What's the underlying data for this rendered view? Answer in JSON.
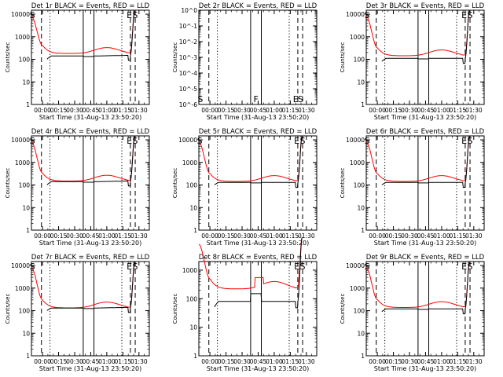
{
  "chart_data": [
    {
      "type": "line",
      "title": "Det 1r BLACK = Events, RED = LLD",
      "empty": false,
      "black_level": 140,
      "red_peak": 330,
      "black_ends": [
        100,
        150
      ],
      "black_hump": 0,
      "red_spike": 0,
      "x_ticks": [
        "00:00",
        "00:15",
        "00:30",
        "00:45",
        "01:00",
        "01:15",
        "01:30"
      ],
      "y_ticks": [
        "1",
        "10",
        "100",
        "1000",
        "10000"
      ],
      "xlabel": "Start Time (31-Aug-13 23:50:20)",
      "ylabel": "Counts/sec",
      "xlim_min": [
        -10.33,
        99.67
      ],
      "ylim": [
        1,
        15000
      ],
      "vlines": [
        {
          "t": -1,
          "style": "dash"
        },
        {
          "t": 7,
          "style": "dot"
        },
        {
          "t": 38,
          "style": "solid"
        },
        {
          "t": 48,
          "style": "solid"
        },
        {
          "t": 74,
          "style": "dot"
        },
        {
          "t": 82,
          "style": "dash"
        },
        {
          "t": 86.5,
          "style": "dash"
        }
      ],
      "markers": [
        {
          "label": "S",
          "t": -9.5
        },
        {
          "label": "E",
          "t": 81
        },
        {
          "label": "S",
          "t": 86.5
        }
      ]
    },
    {
      "type": "line",
      "title": "Det 2r BLACK = Events, RED = LLD",
      "empty": true,
      "black_level": 0,
      "red_peak": 0,
      "black_ends": [
        0,
        0
      ],
      "black_hump": 0,
      "red_spike": 0,
      "x_ticks": [
        "00:00",
        "00:15",
        "00:30",
        "00:45",
        "01:00",
        "01:15",
        "01:30"
      ],
      "y_ticks": [
        "10^0",
        "10^-1",
        "10^-2",
        "10^-3",
        "10^-4",
        "10^-5",
        "10^-6"
      ],
      "xlabel": "Start Time (31-Aug-13 23:50:20)",
      "ylabel": "Counts/sec",
      "xlim_min": [
        -10.33,
        99.67
      ],
      "ylim": [
        1e-06,
        1
      ],
      "vlines": [
        {
          "t": -1,
          "style": "dash"
        },
        {
          "t": 7,
          "style": "dot"
        },
        {
          "t": 38,
          "style": "solid"
        },
        {
          "t": 48,
          "style": "solid"
        },
        {
          "t": 74,
          "style": "dot"
        },
        {
          "t": 82,
          "style": "dash"
        },
        {
          "t": 86.5,
          "style": "dash"
        }
      ],
      "markers": [
        {
          "label": "S",
          "t": -9
        },
        {
          "label": "F",
          "t": 43
        },
        {
          "label": "E",
          "t": 80
        },
        {
          "label": "S",
          "t": 84.5
        }
      ]
    },
    {
      "type": "line",
      "title": "Det 3r BLACK = Events, RED = LLD",
      "empty": false,
      "black_level": 110,
      "red_peak": 260,
      "black_ends": [
        80,
        110
      ],
      "black_hump": 0,
      "red_spike": 0,
      "x_ticks": [
        "00:00",
        "00:15",
        "00:30",
        "00:45",
        "01:00",
        "01:15",
        "01:30"
      ],
      "y_ticks": [
        "1",
        "10",
        "100",
        "1000",
        "10000"
      ],
      "xlabel": "Start Time (31-Aug-13 23:50:20)",
      "ylabel": "Counts/sec",
      "xlim_min": [
        -10.33,
        99.67
      ],
      "ylim": [
        1,
        15000
      ],
      "vlines": [
        {
          "t": -1,
          "style": "dash"
        },
        {
          "t": 7,
          "style": "dot"
        },
        {
          "t": 38,
          "style": "solid"
        },
        {
          "t": 48,
          "style": "solid"
        },
        {
          "t": 74,
          "style": "dot"
        },
        {
          "t": 82,
          "style": "dash"
        },
        {
          "t": 86.5,
          "style": "dash"
        }
      ],
      "markers": [
        {
          "label": "S",
          "t": -9.5
        },
        {
          "label": "E",
          "t": 81
        },
        {
          "label": "S",
          "t": 86.5
        }
      ]
    },
    {
      "type": "line",
      "title": "Det 4r BLACK = Events, RED = LLD",
      "empty": false,
      "black_level": 140,
      "red_peak": 270,
      "black_ends": [
        100,
        150
      ],
      "black_hump": 0,
      "red_spike": 0,
      "x_ticks": [
        "00:00",
        "00:15",
        "00:30",
        "00:45",
        "01:00",
        "01:15",
        "01:30"
      ],
      "y_ticks": [
        "1",
        "10",
        "100",
        "1000",
        "10000"
      ],
      "xlabel": "Start Time (31-Aug-13 23:50:20)",
      "ylabel": "Counts/sec",
      "xlim_min": [
        -10.33,
        99.67
      ],
      "ylim": [
        1,
        15000
      ],
      "vlines": [
        {
          "t": -1,
          "style": "dash"
        },
        {
          "t": 7,
          "style": "dot"
        },
        {
          "t": 38,
          "style": "solid"
        },
        {
          "t": 48,
          "style": "solid"
        },
        {
          "t": 74,
          "style": "dot"
        },
        {
          "t": 82,
          "style": "dash"
        },
        {
          "t": 86.5,
          "style": "dash"
        }
      ],
      "markers": [
        {
          "label": "S",
          "t": -9.5
        },
        {
          "label": "E",
          "t": 81
        },
        {
          "label": "S",
          "t": 86.5
        }
      ]
    },
    {
      "type": "line",
      "title": "Det 5r BLACK = Events, RED = LLD",
      "empty": false,
      "black_level": 130,
      "red_peak": 260,
      "black_ends": [
        100,
        130
      ],
      "black_hump": 0,
      "red_spike": 0,
      "x_ticks": [
        "00:00",
        "00:15",
        "00:30",
        "00:45",
        "01:00",
        "01:15",
        "01:30"
      ],
      "y_ticks": [
        "1",
        "10",
        "100",
        "1000",
        "10000"
      ],
      "xlabel": "Start Time (31-Aug-13 23:50:20)",
      "ylabel": "Counts/sec",
      "xlim_min": [
        -10.33,
        99.67
      ],
      "ylim": [
        1,
        15000
      ],
      "vlines": [
        {
          "t": -1,
          "style": "dash"
        },
        {
          "t": 7,
          "style": "dot"
        },
        {
          "t": 38,
          "style": "solid"
        },
        {
          "t": 48,
          "style": "solid"
        },
        {
          "t": 74,
          "style": "dot"
        },
        {
          "t": 82,
          "style": "dash"
        },
        {
          "t": 86.5,
          "style": "dash"
        }
      ],
      "markers": [
        {
          "label": "S",
          "t": -9.5
        },
        {
          "label": "E",
          "t": 81
        },
        {
          "label": "S",
          "t": 86.5
        }
      ]
    },
    {
      "type": "line",
      "title": "Det 6r BLACK = Events, RED = LLD",
      "empty": false,
      "black_level": 130,
      "red_peak": 260,
      "black_ends": [
        100,
        130
      ],
      "black_hump": 0,
      "red_spike": 0,
      "x_ticks": [
        "00:00",
        "00:15",
        "00:30",
        "00:45",
        "01:00",
        "01:15",
        "01:30"
      ],
      "y_ticks": [
        "1",
        "10",
        "100",
        "1000",
        "10000"
      ],
      "xlabel": "Start Time (31-Aug-13 23:50:20)",
      "ylabel": "Counts/sec",
      "xlim_min": [
        -10.33,
        99.67
      ],
      "ylim": [
        1,
        15000
      ],
      "vlines": [
        {
          "t": -1,
          "style": "dash"
        },
        {
          "t": 7,
          "style": "dot"
        },
        {
          "t": 38,
          "style": "solid"
        },
        {
          "t": 48,
          "style": "solid"
        },
        {
          "t": 74,
          "style": "dot"
        },
        {
          "t": 82,
          "style": "dash"
        },
        {
          "t": 86.5,
          "style": "dash"
        }
      ],
      "markers": [
        {
          "label": "S",
          "t": -9.5
        },
        {
          "label": "E",
          "t": 81
        },
        {
          "label": "S",
          "t": 86.5
        }
      ]
    },
    {
      "type": "line",
      "title": "Det 7r BLACK = Events, RED = LLD",
      "empty": false,
      "black_level": 130,
      "red_peak": 240,
      "black_ends": [
        100,
        140
      ],
      "black_hump": 0,
      "red_spike": 0,
      "x_ticks": [
        "00:00",
        "00:15",
        "00:30",
        "00:45",
        "01:00",
        "01:15",
        "01:30"
      ],
      "y_ticks": [
        "1",
        "10",
        "100",
        "1000",
        "10000"
      ],
      "xlabel": "Start Time (31-Aug-13 23:50:20)",
      "ylabel": "Counts/sec",
      "xlim_min": [
        -10.33,
        99.67
      ],
      "ylim": [
        1,
        15000
      ],
      "vlines": [
        {
          "t": -1,
          "style": "dash"
        },
        {
          "t": 7,
          "style": "dot"
        },
        {
          "t": 38,
          "style": "solid"
        },
        {
          "t": 48,
          "style": "solid"
        },
        {
          "t": 74,
          "style": "dot"
        },
        {
          "t": 82,
          "style": "dash"
        },
        {
          "t": 86.5,
          "style": "dash"
        }
      ],
      "markers": [
        {
          "label": "S",
          "t": -9.5
        },
        {
          "label": "E",
          "t": 81
        },
        {
          "label": "S",
          "t": 86.5
        }
      ]
    },
    {
      "type": "line",
      "title": "Det 8r BLACK = Events, RED = LLD",
      "empty": false,
      "black_level": 80,
      "red_peak": 400,
      "black_ends": [
        50,
        80
      ],
      "black_hump": 150,
      "red_spike": 550,
      "x_ticks": [
        "00:00",
        "00:15",
        "00:30",
        "00:45",
        "01:00",
        "01:15",
        "01:30"
      ],
      "y_ticks": [
        "1",
        "10",
        "100",
        "1000"
      ],
      "xlabel": "Start Time (31-Aug-13 23:50:20)",
      "ylabel": "Counts/sec",
      "xlim_min": [
        -10.33,
        99.67
      ],
      "ylim": [
        1,
        2000
      ],
      "vlines": [
        {
          "t": -1,
          "style": "dash"
        },
        {
          "t": 7,
          "style": "dot"
        },
        {
          "t": 38,
          "style": "solid"
        },
        {
          "t": 48,
          "style": "solid"
        },
        {
          "t": 74,
          "style": "dot"
        },
        {
          "t": 82,
          "style": "dash"
        },
        {
          "t": 86.5,
          "style": "dash"
        }
      ],
      "markers": [
        {
          "label": "E",
          "t": 81
        },
        {
          "label": "S",
          "t": 86.5
        }
      ]
    },
    {
      "type": "line",
      "title": "Det 9r BLACK = Events, RED = LLD",
      "empty": false,
      "black_level": 120,
      "red_peak": 250,
      "black_ends": [
        90,
        120
      ],
      "black_hump": 0,
      "red_spike": 0,
      "x_ticks": [
        "00:00",
        "00:15",
        "00:30",
        "00:45",
        "01:00",
        "01:15",
        "01:30"
      ],
      "y_ticks": [
        "1",
        "10",
        "100",
        "1000",
        "10000"
      ],
      "xlabel": "Start Time (31-Aug-13 23:50:20)",
      "ylabel": "Counts/sec",
      "xlim_min": [
        -10.33,
        99.67
      ],
      "ylim": [
        1,
        15000
      ],
      "vlines": [
        {
          "t": -1,
          "style": "dash"
        },
        {
          "t": 7,
          "style": "dot"
        },
        {
          "t": 38,
          "style": "solid"
        },
        {
          "t": 48,
          "style": "solid"
        },
        {
          "t": 74,
          "style": "dot"
        },
        {
          "t": 82,
          "style": "dash"
        },
        {
          "t": 86.5,
          "style": "dash"
        }
      ],
      "markers": [
        {
          "label": "S",
          "t": -9.5
        },
        {
          "label": "E",
          "t": 81
        },
        {
          "label": "S",
          "t": 86.5
        }
      ]
    }
  ]
}
